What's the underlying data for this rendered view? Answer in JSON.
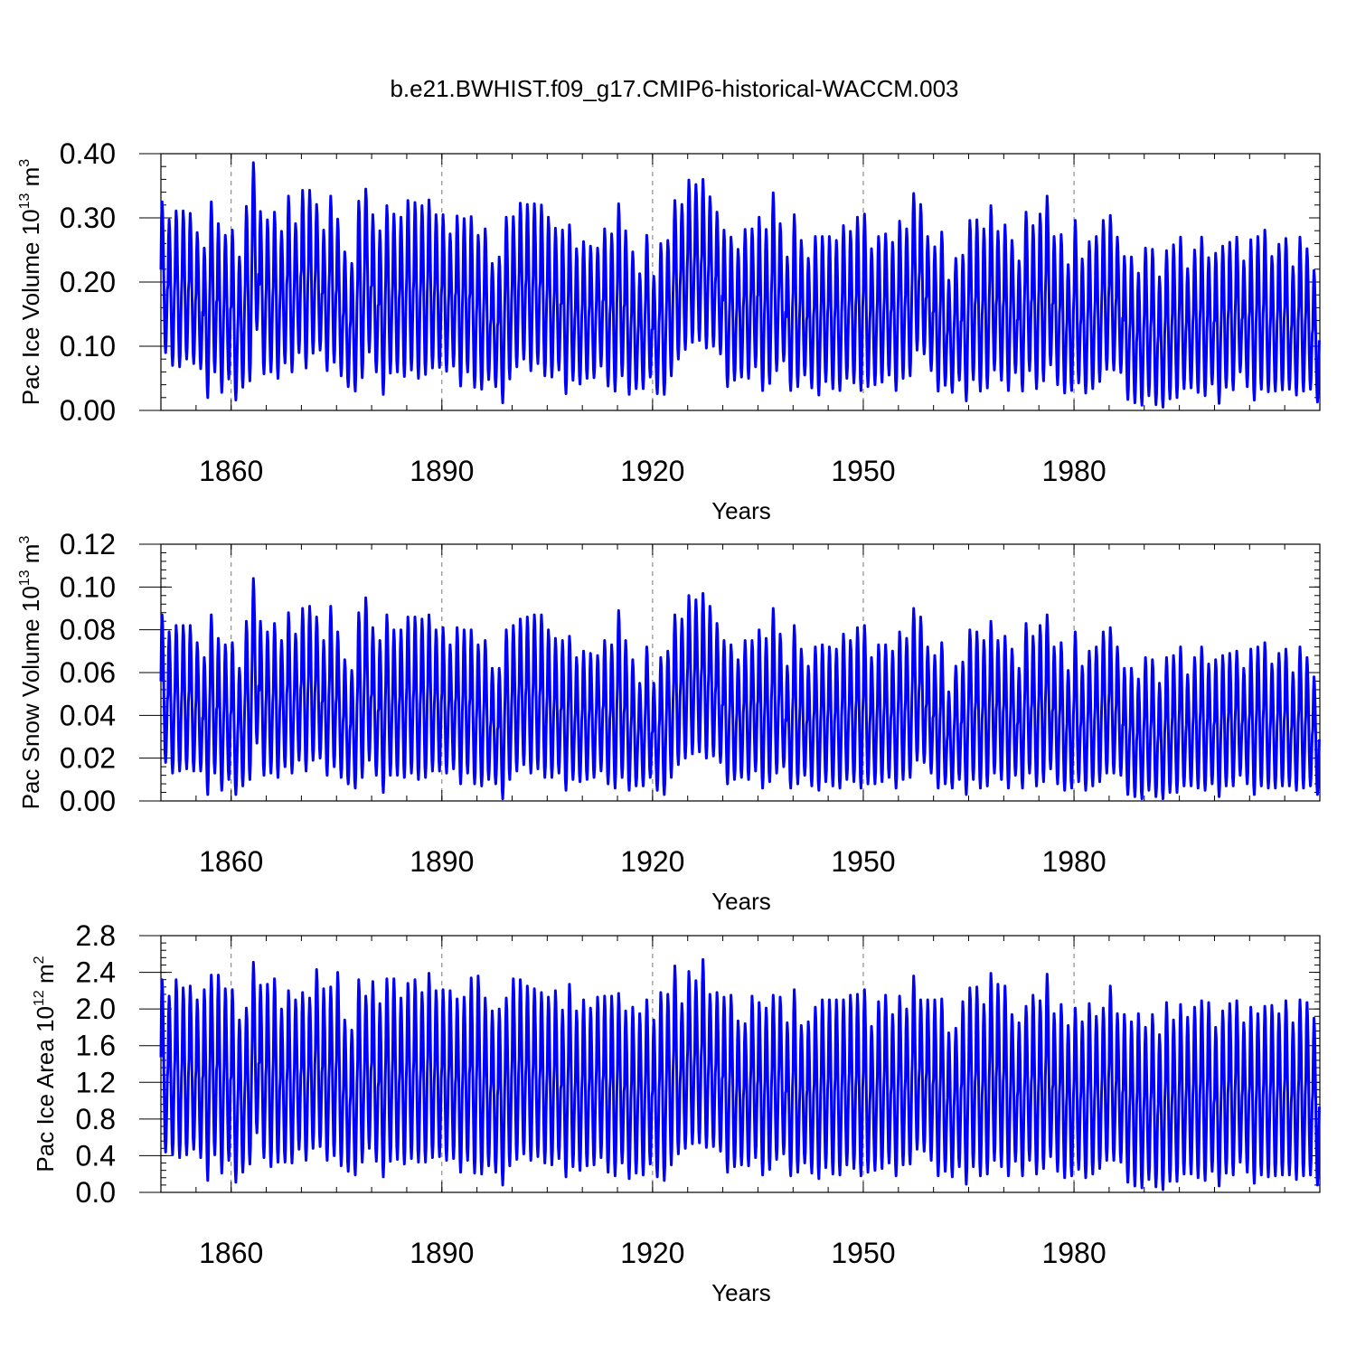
{
  "title": "b.e21.BWHIST.f09_g17.CMIP6-historical-WACCM.003",
  "chart_data": [
    {
      "type": "line",
      "ylabel": {
        "base": "Pac Ice Volume 10",
        "exp": "13",
        "unit": " m",
        "unit_exp": "3"
      },
      "xlabel": "Years",
      "xlim": [
        1850,
        2015
      ],
      "xticks": [
        1860,
        1890,
        1920,
        1950,
        1980
      ],
      "xtick_labels": [
        "1860",
        "1890",
        "1920",
        "1950",
        "1980"
      ],
      "ylim": [
        0.0,
        0.4
      ],
      "yticks": [
        0.0,
        0.1,
        0.2,
        0.3,
        0.4
      ],
      "ytick_labels": [
        "0.00",
        "0.10",
        "0.20",
        "0.30",
        "0.40"
      ],
      "grid_x": true,
      "color": "#0000ff",
      "series_note": "monthly seasonal cycle; annual maxima and minima listed per year 1850-2014",
      "years": [
        1850,
        2014
      ],
      "annual_max": [
        0.325,
        0.297,
        0.311,
        0.311,
        0.307,
        0.277,
        0.253,
        0.325,
        0.291,
        0.273,
        0.281,
        0.239,
        0.318,
        0.386,
        0.31,
        0.297,
        0.309,
        0.279,
        0.334,
        0.291,
        0.343,
        0.343,
        0.321,
        0.281,
        0.334,
        0.298,
        0.247,
        0.229,
        0.326,
        0.345,
        0.305,
        0.28,
        0.319,
        0.306,
        0.301,
        0.327,
        0.324,
        0.319,
        0.328,
        0.305,
        0.305,
        0.275,
        0.303,
        0.299,
        0.302,
        0.273,
        0.283,
        0.229,
        0.239,
        0.301,
        0.302,
        0.323,
        0.321,
        0.322,
        0.32,
        0.301,
        0.284,
        0.281,
        0.289,
        0.252,
        0.263,
        0.256,
        0.253,
        0.283,
        0.275,
        0.322,
        0.28,
        0.247,
        0.213,
        0.273,
        0.209,
        0.26,
        0.265,
        0.327,
        0.321,
        0.359,
        0.352,
        0.36,
        0.333,
        0.309,
        0.281,
        0.27,
        0.251,
        0.282,
        0.283,
        0.301,
        0.282,
        0.339,
        0.291,
        0.239,
        0.305,
        0.265,
        0.237,
        0.271,
        0.271,
        0.271,
        0.265,
        0.288,
        0.279,
        0.301,
        0.306,
        0.252,
        0.271,
        0.275,
        0.262,
        0.295,
        0.283,
        0.338,
        0.321,
        0.271,
        0.255,
        0.278,
        0.203,
        0.237,
        0.242,
        0.296,
        0.297,
        0.283,
        0.319,
        0.279,
        0.289,
        0.265,
        0.233,
        0.309,
        0.288,
        0.306,
        0.334,
        0.271,
        0.274,
        0.227,
        0.296,
        0.236,
        0.263,
        0.271,
        0.296,
        0.304,
        0.27,
        0.24,
        0.239,
        0.214,
        0.253,
        0.251,
        0.208,
        0.249,
        0.258,
        0.27,
        0.221,
        0.25,
        0.27,
        0.238,
        0.245,
        0.256,
        0.262,
        0.27,
        0.233,
        0.266,
        0.271,
        0.281,
        0.24,
        0.259,
        0.268,
        0.224,
        0.27,
        0.252,
        0.218
      ],
      "annual_min": [
        0.09,
        0.07,
        0.068,
        0.08,
        0.073,
        0.065,
        0.02,
        0.06,
        0.028,
        0.049,
        0.016,
        0.036,
        0.046,
        0.126,
        0.057,
        0.06,
        0.05,
        0.074,
        0.06,
        0.09,
        0.066,
        0.089,
        0.094,
        0.062,
        0.075,
        0.054,
        0.037,
        0.03,
        0.051,
        0.091,
        0.06,
        0.025,
        0.058,
        0.06,
        0.053,
        0.063,
        0.05,
        0.056,
        0.066,
        0.067,
        0.061,
        0.069,
        0.038,
        0.06,
        0.036,
        0.033,
        0.048,
        0.037,
        0.012,
        0.049,
        0.068,
        0.08,
        0.062,
        0.073,
        0.054,
        0.052,
        0.063,
        0.026,
        0.047,
        0.041,
        0.05,
        0.051,
        0.069,
        0.038,
        0.03,
        0.054,
        0.025,
        0.034,
        0.034,
        0.052,
        0.026,
        0.025,
        0.054,
        0.08,
        0.095,
        0.106,
        0.109,
        0.097,
        0.1,
        0.088,
        0.037,
        0.047,
        0.052,
        0.05,
        0.068,
        0.031,
        0.042,
        0.062,
        0.077,
        0.031,
        0.037,
        0.055,
        0.035,
        0.024,
        0.045,
        0.034,
        0.031,
        0.05,
        0.043,
        0.031,
        0.037,
        0.04,
        0.044,
        0.055,
        0.031,
        0.05,
        0.054,
        0.094,
        0.088,
        0.062,
        0.03,
        0.039,
        0.028,
        0.047,
        0.015,
        0.048,
        0.03,
        0.035,
        0.063,
        0.047,
        0.031,
        0.059,
        0.03,
        0.062,
        0.034,
        0.046,
        0.071,
        0.04,
        0.027,
        0.031,
        0.043,
        0.027,
        0.034,
        0.045,
        0.064,
        0.063,
        0.059,
        0.017,
        0.012,
        0.008,
        0.023,
        0.009,
        0.005,
        0.018,
        0.02,
        0.034,
        0.035,
        0.028,
        0.023,
        0.041,
        0.011,
        0.036,
        0.032,
        0.06,
        0.037,
        0.016,
        0.033,
        0.029,
        0.03,
        0.032,
        0.033,
        0.024,
        0.03,
        0.033,
        0.013,
        0.019
      ]
    },
    {
      "type": "line",
      "ylabel": {
        "base": "Pac Snow Volume 10",
        "exp": "13",
        "unit": " m",
        "unit_exp": "3"
      },
      "xlabel": "Years",
      "xlim": [
        1850,
        2015
      ],
      "xticks": [
        1860,
        1890,
        1920,
        1950,
        1980
      ],
      "xtick_labels": [
        "1860",
        "1890",
        "1920",
        "1950",
        "1980"
      ],
      "ylim": [
        0.0,
        0.12
      ],
      "yticks": [
        0.0,
        0.02,
        0.04,
        0.06,
        0.08,
        0.1,
        0.12
      ],
      "ytick_labels": [
        "0.00",
        "0.02",
        "0.04",
        "0.06",
        "0.08",
        "0.10",
        "0.12"
      ],
      "grid_x": true,
      "color": "#0000ff",
      "years": [
        1850,
        2014
      ],
      "annual_max": [
        0.087,
        0.079,
        0.082,
        0.082,
        0.082,
        0.074,
        0.067,
        0.087,
        0.076,
        0.073,
        0.074,
        0.062,
        0.084,
        0.104,
        0.084,
        0.079,
        0.083,
        0.075,
        0.088,
        0.078,
        0.09,
        0.091,
        0.086,
        0.075,
        0.091,
        0.079,
        0.066,
        0.061,
        0.088,
        0.095,
        0.081,
        0.075,
        0.087,
        0.08,
        0.08,
        0.086,
        0.086,
        0.085,
        0.087,
        0.08,
        0.081,
        0.073,
        0.081,
        0.08,
        0.08,
        0.073,
        0.075,
        0.062,
        0.062,
        0.08,
        0.082,
        0.085,
        0.086,
        0.087,
        0.087,
        0.08,
        0.076,
        0.075,
        0.077,
        0.067,
        0.07,
        0.069,
        0.068,
        0.075,
        0.073,
        0.089,
        0.075,
        0.066,
        0.055,
        0.072,
        0.055,
        0.067,
        0.07,
        0.087,
        0.085,
        0.096,
        0.094,
        0.097,
        0.091,
        0.083,
        0.075,
        0.073,
        0.066,
        0.075,
        0.075,
        0.08,
        0.076,
        0.09,
        0.078,
        0.063,
        0.082,
        0.071,
        0.063,
        0.072,
        0.073,
        0.072,
        0.071,
        0.078,
        0.075,
        0.081,
        0.082,
        0.067,
        0.073,
        0.073,
        0.07,
        0.079,
        0.076,
        0.09,
        0.086,
        0.072,
        0.068,
        0.074,
        0.051,
        0.063,
        0.065,
        0.08,
        0.079,
        0.075,
        0.084,
        0.075,
        0.077,
        0.071,
        0.062,
        0.083,
        0.077,
        0.082,
        0.087,
        0.072,
        0.074,
        0.061,
        0.079,
        0.063,
        0.07,
        0.072,
        0.079,
        0.081,
        0.072,
        0.062,
        0.062,
        0.057,
        0.067,
        0.066,
        0.055,
        0.067,
        0.068,
        0.072,
        0.059,
        0.067,
        0.072,
        0.064,
        0.066,
        0.068,
        0.069,
        0.07,
        0.062,
        0.071,
        0.072,
        0.074,
        0.064,
        0.069,
        0.071,
        0.06,
        0.072,
        0.067,
        0.058
      ],
      "annual_min": [
        0.018,
        0.013,
        0.014,
        0.015,
        0.014,
        0.014,
        0.003,
        0.013,
        0.005,
        0.01,
        0.003,
        0.007,
        0.01,
        0.027,
        0.012,
        0.013,
        0.011,
        0.016,
        0.013,
        0.019,
        0.014,
        0.019,
        0.02,
        0.012,
        0.016,
        0.011,
        0.008,
        0.006,
        0.011,
        0.019,
        0.012,
        0.004,
        0.012,
        0.012,
        0.011,
        0.013,
        0.01,
        0.011,
        0.014,
        0.014,
        0.013,
        0.015,
        0.008,
        0.013,
        0.008,
        0.007,
        0.01,
        0.008,
        0.001,
        0.01,
        0.014,
        0.017,
        0.013,
        0.015,
        0.011,
        0.011,
        0.013,
        0.005,
        0.01,
        0.009,
        0.01,
        0.011,
        0.014,
        0.008,
        0.006,
        0.011,
        0.005,
        0.007,
        0.007,
        0.011,
        0.005,
        0.003,
        0.011,
        0.017,
        0.02,
        0.022,
        0.023,
        0.02,
        0.021,
        0.018,
        0.008,
        0.01,
        0.011,
        0.01,
        0.014,
        0.006,
        0.009,
        0.013,
        0.016,
        0.006,
        0.008,
        0.012,
        0.007,
        0.005,
        0.009,
        0.007,
        0.006,
        0.01,
        0.009,
        0.006,
        0.008,
        0.008,
        0.009,
        0.011,
        0.006,
        0.01,
        0.011,
        0.019,
        0.018,
        0.013,
        0.006,
        0.008,
        0.006,
        0.01,
        0.003,
        0.01,
        0.006,
        0.007,
        0.013,
        0.01,
        0.006,
        0.012,
        0.006,
        0.013,
        0.007,
        0.009,
        0.015,
        0.008,
        0.005,
        0.006,
        0.009,
        0.005,
        0.007,
        0.009,
        0.013,
        0.013,
        0.012,
        0.003,
        0.002,
        0.001,
        0.005,
        0.002,
        0.001,
        0.004,
        0.004,
        0.007,
        0.007,
        0.006,
        0.005,
        0.008,
        0.002,
        0.007,
        0.007,
        0.012,
        0.008,
        0.003,
        0.007,
        0.006,
        0.006,
        0.007,
        0.007,
        0.005,
        0.006,
        0.007,
        0.003,
        0.02
      ]
    },
    {
      "type": "line",
      "ylabel": {
        "base": "Pac Ice Area 10",
        "exp": "12",
        "unit": " m",
        "unit_exp": "2"
      },
      "xlabel": "Years",
      "xlim": [
        1850,
        2015
      ],
      "xticks": [
        1860,
        1890,
        1920,
        1950,
        1980
      ],
      "xtick_labels": [
        "1860",
        "1890",
        "1920",
        "1950",
        "1980"
      ],
      "ylim": [
        0.0,
        2.8
      ],
      "yticks": [
        0.0,
        0.4,
        0.8,
        1.2,
        1.6,
        2.0,
        2.4,
        2.8
      ],
      "ytick_labels": [
        "0.0",
        "0.4",
        "0.8",
        "1.2",
        "1.6",
        "2.0",
        "2.4",
        "2.8"
      ],
      "grid_x": true,
      "color": "#0000ff",
      "years": [
        1850,
        2014
      ],
      "annual_max": [
        2.32,
        2.14,
        2.32,
        2.23,
        2.25,
        2.1,
        2.21,
        2.37,
        2.37,
        2.22,
        2.21,
        1.88,
        2.01,
        2.51,
        2.26,
        2.27,
        2.33,
        2.0,
        2.2,
        2.1,
        2.18,
        2.12,
        2.43,
        2.22,
        2.24,
        2.4,
        1.88,
        1.77,
        2.32,
        2.14,
        2.3,
        2.06,
        2.33,
        2.33,
        2.12,
        2.28,
        2.32,
        2.18,
        2.39,
        2.2,
        2.21,
        2.2,
        2.11,
        2.13,
        2.34,
        2.36,
        2.12,
        1.98,
        2.0,
        2.12,
        2.33,
        2.32,
        2.25,
        2.22,
        2.18,
        2.13,
        2.2,
        1.99,
        2.27,
        1.98,
        2.1,
        2.01,
        2.13,
        2.14,
        2.14,
        2.17,
        1.98,
        2.02,
        1.95,
        2.1,
        1.88,
        2.18,
        2.16,
        2.47,
        2.06,
        2.41,
        2.31,
        2.54,
        2.16,
        2.18,
        2.13,
        2.15,
        1.87,
        1.84,
        2.14,
        2.07,
        2.01,
        2.15,
        2.13,
        1.85,
        2.21,
        1.82,
        1.86,
        2.02,
        2.1,
        2.1,
        2.1,
        2.1,
        2.15,
        2.16,
        2.21,
        1.81,
        2.08,
        2.15,
        1.94,
        2.14,
        2.0,
        2.36,
        2.1,
        2.1,
        2.1,
        2.11,
        1.74,
        1.79,
        2.08,
        2.23,
        2.24,
        2.05,
        2.39,
        2.27,
        2.25,
        1.94,
        1.85,
        2.03,
        2.15,
        2.09,
        2.38,
        1.95,
        2.05,
        1.82,
        2.01,
        1.86,
        2.06,
        1.92,
        2.01,
        2.25,
        1.95,
        1.94,
        1.86,
        1.95,
        1.8,
        1.94,
        1.72,
        2.07,
        1.88,
        2.05,
        1.91,
        2.02,
        2.09,
        2.07,
        1.8,
        1.98,
        2.06,
        2.09,
        1.85,
        2.02,
        1.95,
        2.03,
        2.04,
        1.95,
        2.09,
        1.85,
        2.1,
        2.07,
        1.9
      ],
      "annual_min": [
        0.44,
        0.41,
        0.38,
        0.41,
        0.47,
        0.38,
        0.13,
        0.41,
        0.21,
        0.35,
        0.11,
        0.22,
        0.31,
        0.65,
        0.38,
        0.28,
        0.33,
        0.33,
        0.32,
        0.47,
        0.35,
        0.48,
        0.5,
        0.35,
        0.4,
        0.29,
        0.23,
        0.19,
        0.33,
        0.48,
        0.34,
        0.17,
        0.34,
        0.36,
        0.31,
        0.37,
        0.33,
        0.33,
        0.38,
        0.39,
        0.35,
        0.37,
        0.22,
        0.35,
        0.21,
        0.2,
        0.29,
        0.22,
        0.08,
        0.29,
        0.36,
        0.42,
        0.35,
        0.39,
        0.32,
        0.3,
        0.37,
        0.17,
        0.28,
        0.24,
        0.29,
        0.3,
        0.38,
        0.22,
        0.18,
        0.32,
        0.15,
        0.21,
        0.19,
        0.31,
        0.17,
        0.13,
        0.3,
        0.42,
        0.48,
        0.53,
        0.54,
        0.49,
        0.5,
        0.45,
        0.22,
        0.28,
        0.3,
        0.29,
        0.38,
        0.19,
        0.25,
        0.36,
        0.42,
        0.18,
        0.22,
        0.32,
        0.21,
        0.15,
        0.27,
        0.2,
        0.19,
        0.3,
        0.26,
        0.18,
        0.22,
        0.24,
        0.26,
        0.32,
        0.18,
        0.3,
        0.31,
        0.47,
        0.45,
        0.35,
        0.18,
        0.23,
        0.17,
        0.28,
        0.09,
        0.28,
        0.18,
        0.2,
        0.35,
        0.28,
        0.18,
        0.34,
        0.18,
        0.35,
        0.2,
        0.26,
        0.39,
        0.23,
        0.16,
        0.18,
        0.25,
        0.16,
        0.2,
        0.26,
        0.35,
        0.35,
        0.33,
        0.11,
        0.07,
        0.05,
        0.14,
        0.06,
        0.03,
        0.12,
        0.12,
        0.2,
        0.2,
        0.16,
        0.13,
        0.23,
        0.07,
        0.21,
        0.19,
        0.33,
        0.22,
        0.1,
        0.19,
        0.17,
        0.18,
        0.19,
        0.19,
        0.14,
        0.18,
        0.19,
        0.08,
        0.89
      ]
    }
  ]
}
